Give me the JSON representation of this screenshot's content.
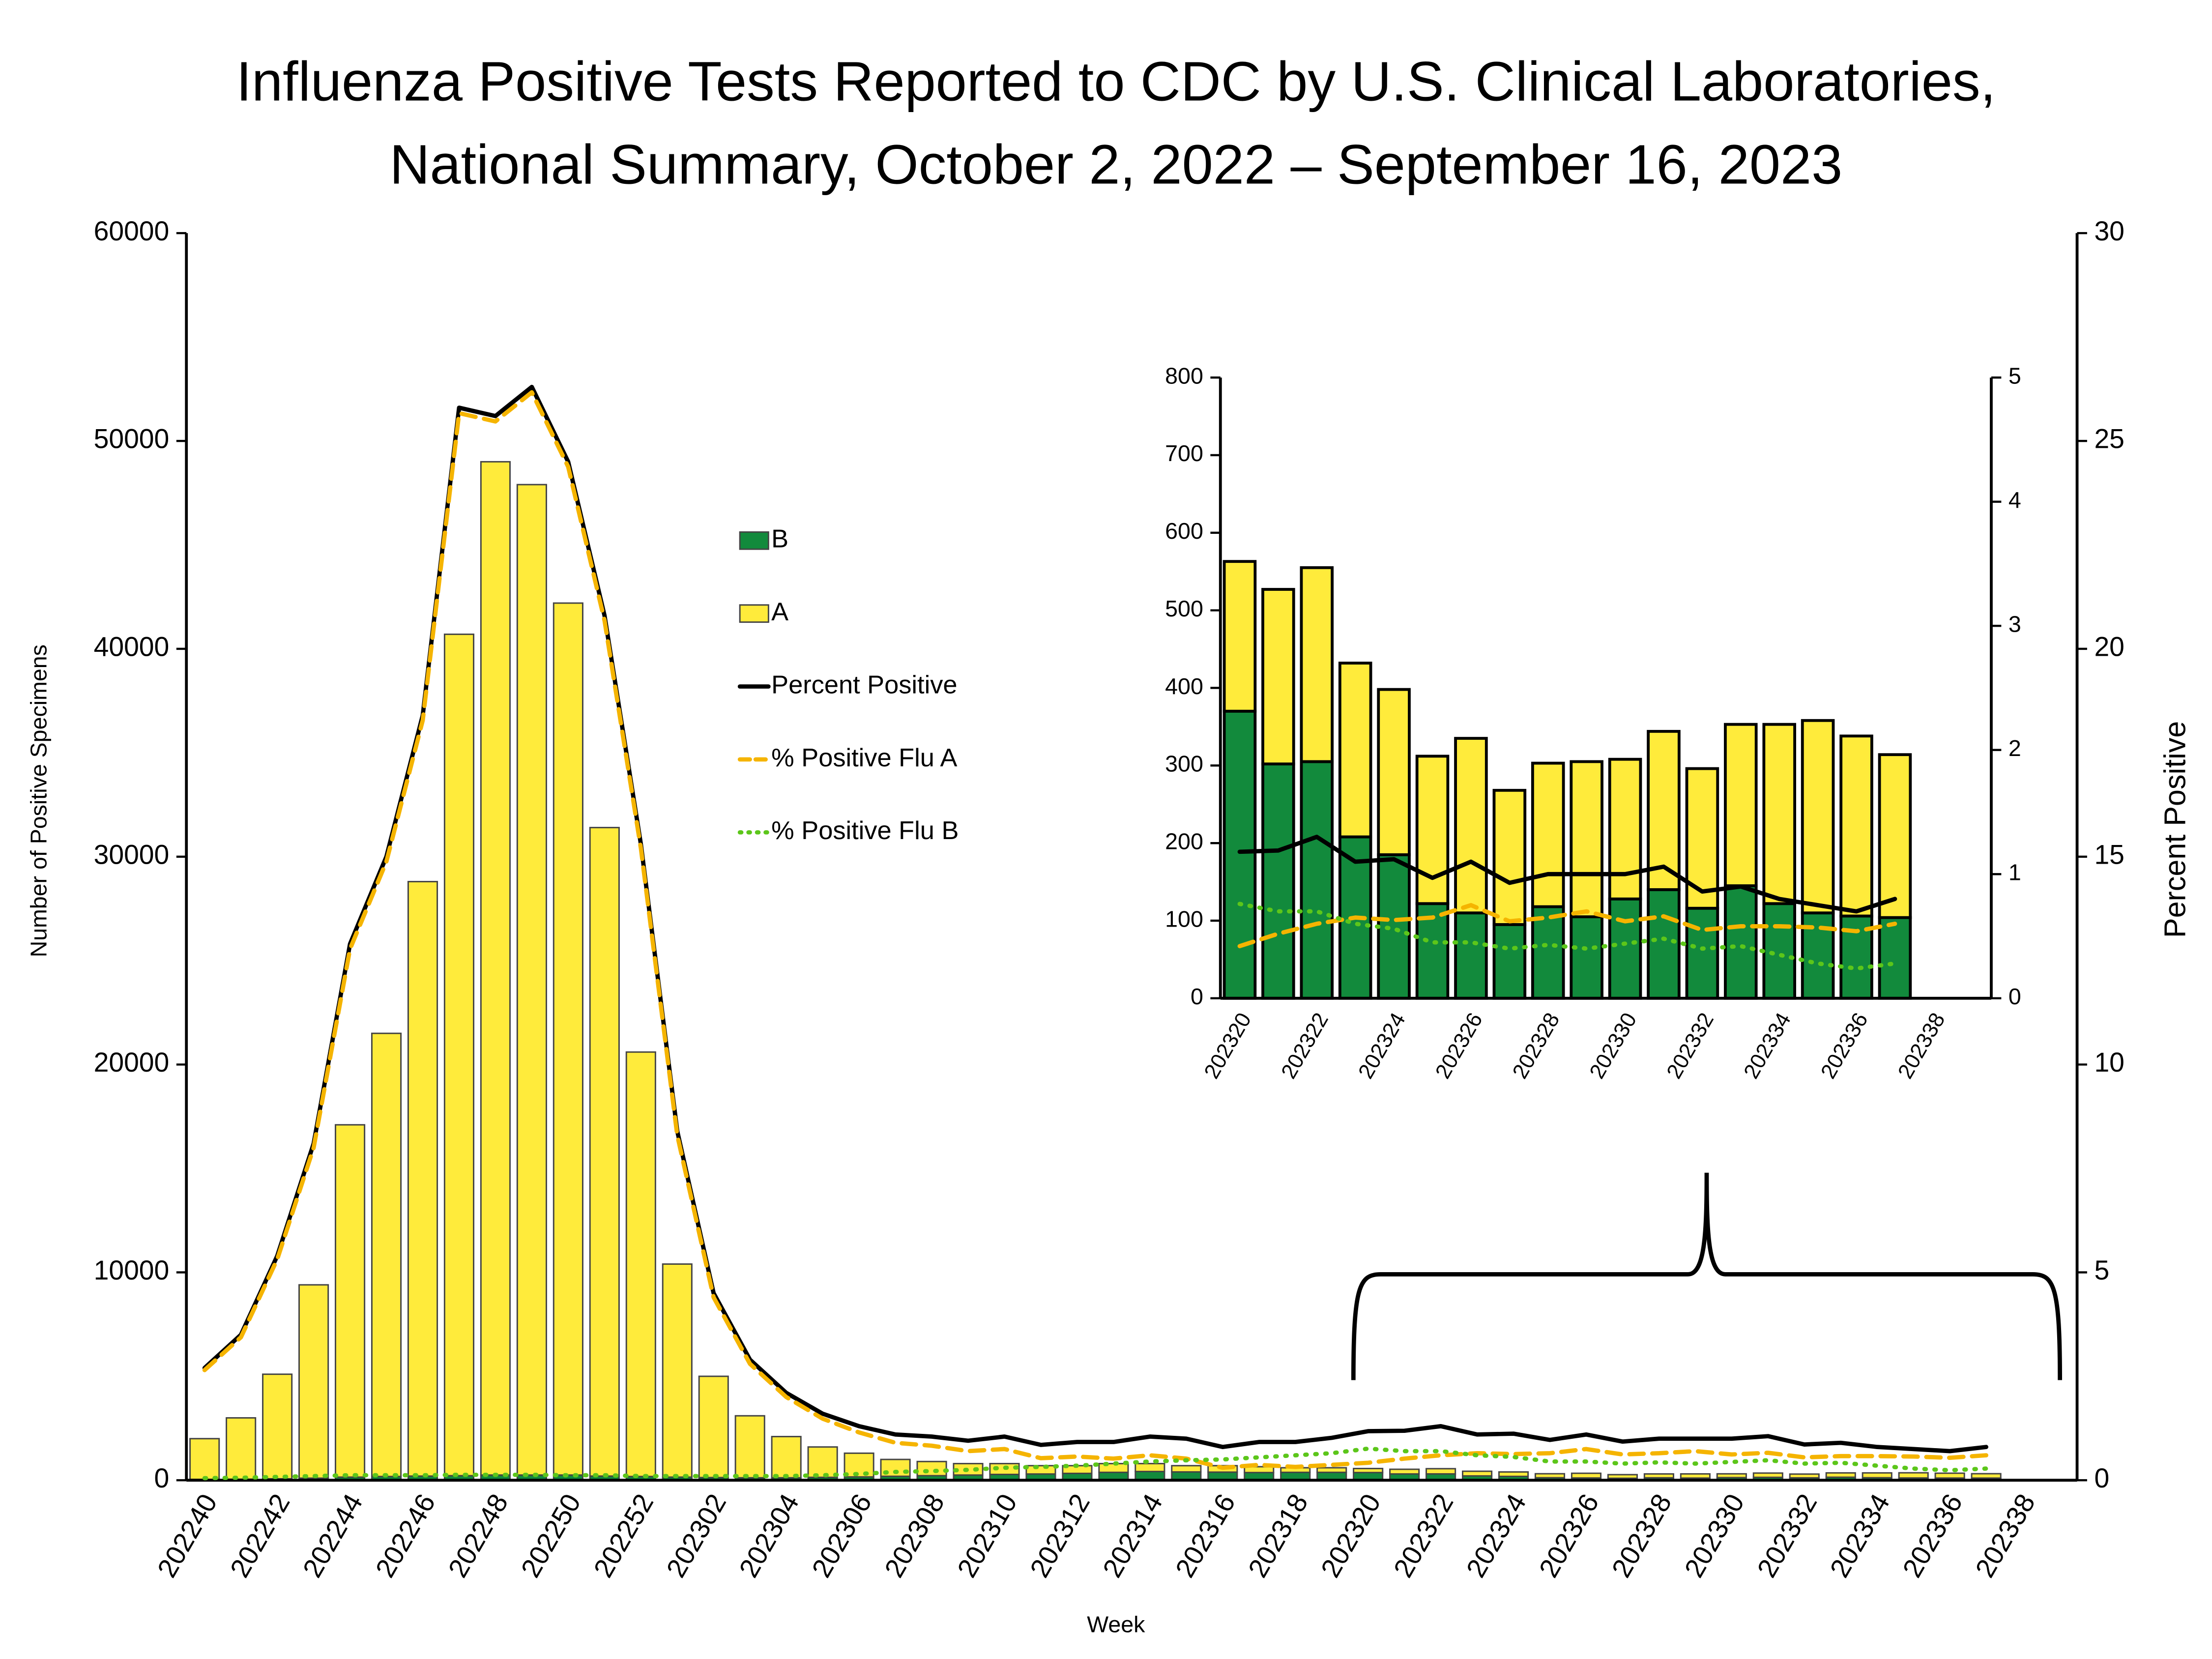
{
  "chart_data": [
    {
      "type": "bar",
      "stacked": true,
      "legend": true,
      "title": [
        "Influenza Positive Tests Reported to CDC by U.S. Clinical Laboratories,",
        "National Summary, October 2, 2022 – September 16, 2023"
      ],
      "x_label": "Week",
      "y_label": "Number of Positive Specimens",
      "y2_label": "Percent Positive",
      "categories": [
        "202240",
        null,
        "202242",
        null,
        "202244",
        null,
        "202246",
        null,
        "202248",
        null,
        "202250",
        null,
        "202252",
        null,
        "202302",
        null,
        "202304",
        null,
        "202306",
        null,
        "202308",
        null,
        "202310",
        null,
        "202312",
        null,
        "202314",
        null,
        "202316",
        null,
        "202318",
        null,
        "202320",
        null,
        "202322",
        null,
        "202324",
        null,
        "202326",
        null,
        "202328",
        null,
        "202330",
        null,
        "202332",
        null,
        "202334",
        null,
        "202336",
        null,
        "202338",
        null
      ],
      "ylim": [
        0,
        60000
      ],
      "yticks": [
        0,
        10000,
        20000,
        30000,
        40000,
        50000,
        60000
      ],
      "y2lim": [
        0,
        30
      ],
      "y2ticks": [
        0,
        5,
        10,
        15,
        20,
        25,
        30
      ],
      "series": [
        {
          "name": "B",
          "type": "bar",
          "color": "#128a3c",
          "values": [
            40,
            50,
            70,
            100,
            150,
            180,
            200,
            220,
            250,
            250,
            250,
            200,
            180,
            150,
            130,
            120,
            120,
            140,
            160,
            190,
            220,
            250,
            280,
            300,
            330,
            380,
            420,
            400,
            390,
            370,
            380,
            380,
            370,
            302,
            305,
            208,
            185,
            122,
            110,
            95,
            118,
            105,
            128,
            140,
            116,
            145,
            122,
            110,
            106,
            104,
            null,
            null
          ]
        },
        {
          "name": "A",
          "type": "bar",
          "color": "#ffeb3b",
          "values": [
            1960,
            2950,
            5030,
            9300,
            16950,
            21320,
            28600,
            40480,
            48750,
            47650,
            41950,
            31200,
            20420,
            10250,
            4870,
            2980,
            1980,
            1460,
            1140,
            810,
            680,
            550,
            520,
            400,
            370,
            420,
            380,
            300,
            310,
            280,
            220,
            220,
            193,
            225,
            250,
            224,
            213,
            190,
            225,
            173,
            185,
            200,
            180,
            204,
            180,
            208,
            231,
            248,
            232,
            210,
            null,
            null
          ]
        },
        {
          "name": "Percent Positive",
          "type": "line",
          "axis": "y2",
          "dash": "solid",
          "color": "#000000",
          "values": [
            2.7,
            3.5,
            5.4,
            8.1,
            12.9,
            15.0,
            18.4,
            25.8,
            25.6,
            26.3,
            24.5,
            20.8,
            15.3,
            8.4,
            4.5,
            2.9,
            2.1,
            1.6,
            1.3,
            1.1,
            1.05,
            0.95,
            1.05,
            0.85,
            0.92,
            0.92,
            1.05,
            1.0,
            0.8,
            0.92,
            0.92,
            1.02,
            1.18,
            1.19,
            1.3,
            1.1,
            1.12,
            0.97,
            1.1,
            0.93,
            1.0,
            1.0,
            1.0,
            1.06,
            0.86,
            0.9,
            0.8,
            0.75,
            0.7,
            0.8,
            null,
            null
          ]
        },
        {
          "name": "% Positive Flu A",
          "type": "line",
          "axis": "y2",
          "dash": "dashed",
          "color": "#f5b400",
          "values": [
            2.65,
            3.44,
            5.32,
            8.0,
            12.78,
            14.88,
            18.28,
            25.67,
            25.47,
            26.17,
            24.38,
            20.68,
            15.2,
            8.3,
            4.4,
            2.8,
            2.0,
            1.48,
            1.15,
            0.9,
            0.83,
            0.7,
            0.75,
            0.53,
            0.57,
            0.52,
            0.6,
            0.52,
            0.3,
            0.37,
            0.32,
            0.37,
            0.42,
            0.52,
            0.6,
            0.65,
            0.63,
            0.65,
            0.75,
            0.62,
            0.65,
            0.7,
            0.62,
            0.66,
            0.55,
            0.58,
            0.58,
            0.57,
            0.54,
            0.6,
            null,
            null
          ]
        },
        {
          "name": "% Positive Flu B",
          "type": "line",
          "axis": "y2",
          "dash": "dotted",
          "color": "#5cc61a",
          "values": [
            0.05,
            0.06,
            0.08,
            0.1,
            0.12,
            0.12,
            0.12,
            0.13,
            0.13,
            0.13,
            0.12,
            0.12,
            0.1,
            0.1,
            0.1,
            0.1,
            0.1,
            0.12,
            0.15,
            0.2,
            0.22,
            0.25,
            0.3,
            0.32,
            0.35,
            0.4,
            0.45,
            0.48,
            0.5,
            0.55,
            0.6,
            0.65,
            0.76,
            0.7,
            0.7,
            0.6,
            0.56,
            0.45,
            0.45,
            0.4,
            0.43,
            0.4,
            0.44,
            0.48,
            0.4,
            0.42,
            0.35,
            0.28,
            0.24,
            0.28,
            null,
            null
          ]
        }
      ]
    },
    {
      "type": "bar",
      "stacked": true,
      "legend": false,
      "categories": [
        "202320",
        null,
        "202322",
        null,
        "202324",
        null,
        "202326",
        null,
        "202328",
        null,
        "202330",
        null,
        "202332",
        null,
        "202334",
        null,
        "202336",
        null,
        "202338",
        null
      ],
      "ylim": [
        0,
        800
      ],
      "yticks": [
        0,
        100,
        200,
        300,
        400,
        500,
        600,
        700,
        800
      ],
      "y2lim": [
        0,
        5
      ],
      "y2ticks": [
        0,
        1,
        2,
        3,
        4,
        5
      ],
      "series": [
        {
          "type": "bar",
          "color": "#128a3c",
          "values": [
            370,
            302,
            305,
            208,
            185,
            122,
            110,
            95,
            118,
            105,
            128,
            140,
            116,
            145,
            122,
            110,
            106,
            104,
            null,
            null
          ]
        },
        {
          "type": "bar",
          "color": "#ffeb3b",
          "values": [
            193,
            225,
            250,
            224,
            213,
            190,
            225,
            173,
            185,
            200,
            180,
            204,
            180,
            208,
            231,
            248,
            232,
            210,
            null,
            null
          ]
        },
        {
          "type": "line",
          "axis": "y2",
          "dash": "solid",
          "color": "#000000",
          "values": [
            1.18,
            1.19,
            1.3,
            1.1,
            1.12,
            0.97,
            1.1,
            0.93,
            1.0,
            1.0,
            1.0,
            1.06,
            0.86,
            0.9,
            0.8,
            0.75,
            0.7,
            0.8,
            null,
            null
          ]
        },
        {
          "type": "line",
          "axis": "y2",
          "dash": "dashed",
          "color": "#f5b400",
          "values": [
            0.42,
            0.52,
            0.6,
            0.65,
            0.63,
            0.65,
            0.75,
            0.62,
            0.65,
            0.7,
            0.62,
            0.66,
            0.55,
            0.58,
            0.58,
            0.57,
            0.54,
            0.6,
            null,
            null
          ]
        },
        {
          "type": "line",
          "axis": "y2",
          "dash": "dotted",
          "color": "#5cc61a",
          "values": [
            0.76,
            0.7,
            0.7,
            0.6,
            0.56,
            0.45,
            0.45,
            0.4,
            0.43,
            0.4,
            0.44,
            0.48,
            0.4,
            0.42,
            0.35,
            0.28,
            0.24,
            0.28,
            null,
            null
          ]
        }
      ]
    }
  ]
}
